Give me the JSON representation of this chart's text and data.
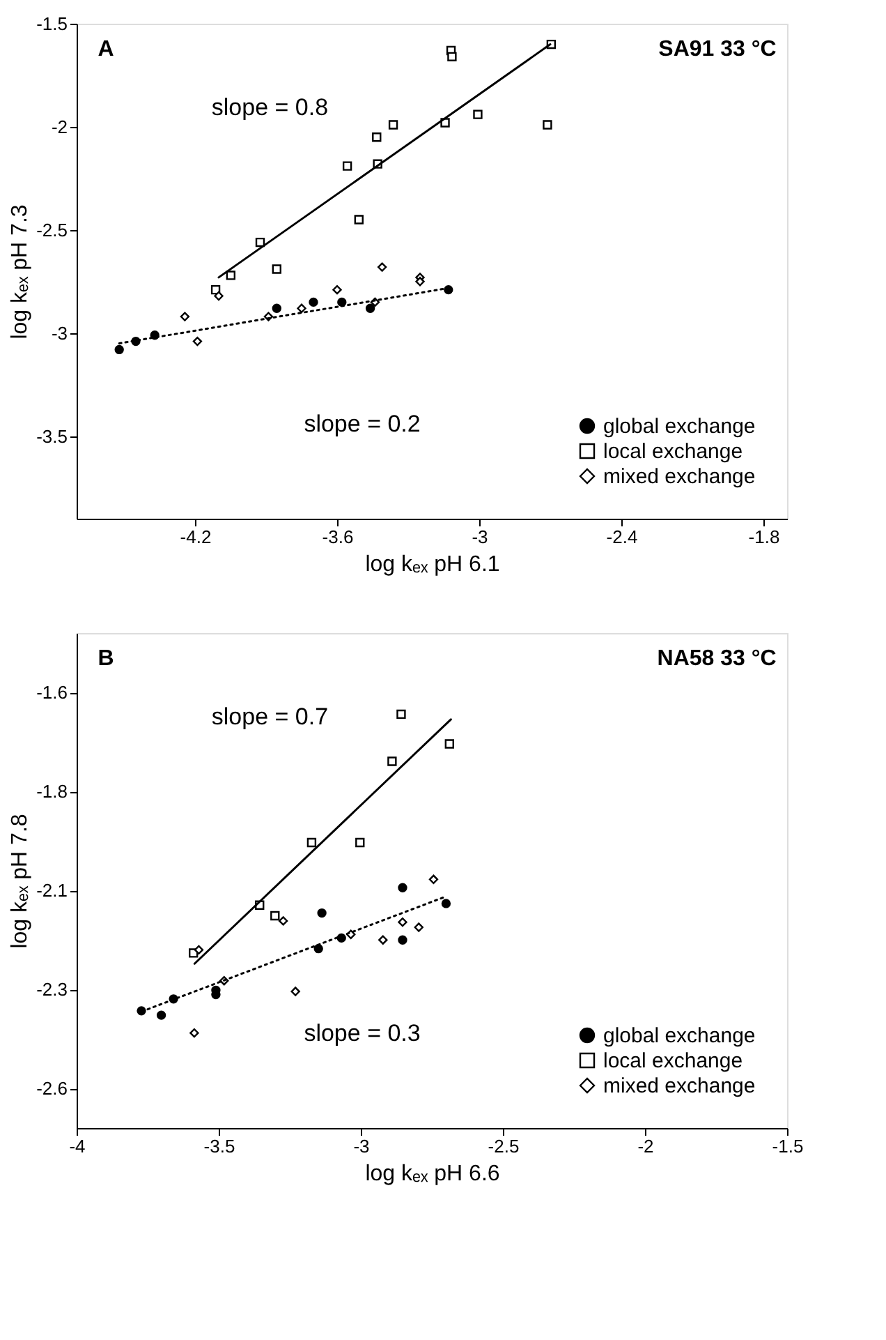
{
  "chart_data": [
    {
      "type": "scatter",
      "xlabel": "log kₑₓ pH 6.1",
      "ylabel": "log kₑₓ pH 7.3",
      "xlim": [
        -4.7,
        -1.7
      ],
      "ylim": [
        -3.9,
        -1.5
      ],
      "xticks": [
        -4.2,
        -3.6,
        -3,
        -2.4,
        -1.8
      ],
      "yticks": [
        -1.5,
        -2,
        -2.5,
        -3,
        -3.5
      ],
      "grid": false,
      "legend": "bottom right",
      "annotations": [
        "A",
        "SA91 33 °C",
        "slope = 0.8",
        "slope = 0.2"
      ],
      "series": [
        {
          "name": "global exchange",
          "marker": "circle",
          "color": "#000000",
          "x": [
            -4.52,
            -4.45,
            -4.37,
            -3.855,
            -3.7,
            -3.58,
            -3.46,
            -3.13
          ],
          "values": [
            -3.08,
            -3.04,
            -3.01,
            -2.88,
            -2.85,
            -2.85,
            -2.88,
            -2.79
          ]
        },
        {
          "name": "local exchange",
          "marker": "square",
          "color": "#000000",
          "x": [
            -4.113,
            -4.049,
            -3.925,
            -3.855,
            -3.557,
            -3.508,
            -3.433,
            -3.429,
            -3.363,
            -3.144,
            -3.119,
            -3.115,
            -3.006,
            -2.712,
            -2.696
          ],
          "values": [
            -2.79,
            -2.72,
            -2.56,
            -2.69,
            -2.19,
            -2.45,
            -2.05,
            -2.18,
            -1.99,
            -1.98,
            -1.63,
            -1.66,
            -1.94,
            -1.99,
            -1.6
          ]
        },
        {
          "name": "mixed exchange",
          "marker": "diamond",
          "color": "#000000",
          "x": [
            -4.243,
            -4.19,
            -4.1,
            -3.89,
            -3.75,
            -3.6,
            -3.44,
            -3.41,
            -3.25,
            -3.25
          ],
          "values": [
            -2.92,
            -3.04,
            -2.82,
            -2.92,
            -2.88,
            -2.79,
            -2.85,
            -2.68,
            -2.73,
            -2.75
          ]
        },
        {
          "type": "line",
          "line_style": "dotted",
          "color": "#000000",
          "x": [
            -4.52,
            -3.12
          ],
          "values": [
            -3.05,
            -2.78
          ]
        },
        {
          "type": "line",
          "line_style": "solid",
          "color": "#000000",
          "x": [
            -4.1,
            -2.7
          ],
          "values": [
            -2.73,
            -1.6
          ]
        }
      ]
    },
    {
      "type": "scatter",
      "xlabel": "log kₑₓ pH 6.6",
      "ylabel": "log kₑₓ pH 7.8",
      "xlim": [
        -4,
        -1.5
      ],
      "ylim": [
        -2.65,
        -1.4
      ],
      "xticks": [
        -4,
        -3.5,
        -3,
        -2.5,
        -2,
        -1.5
      ],
      "yticks": [
        {
          "value": -1.55,
          "label": "-1.6"
        },
        -1.8,
        {
          "value": -2.05,
          "label": "-2.1"
        },
        -2.3,
        {
          "value": -2.55,
          "label": "-2.6"
        }
      ],
      "grid": false,
      "legend": "bottom right",
      "annotations": [
        "B",
        "NA58 33 °C",
        "slope = 0.7",
        "slope = 0.3"
      ],
      "series": [
        {
          "name": "global exchange",
          "marker": "circle",
          "color": "#000000",
          "x": [
            -3.772,
            -3.702,
            -3.659,
            -3.51,
            -3.51,
            -3.137,
            -3.149,
            -3.068,
            -2.853,
            -2.853,
            -2.7
          ],
          "values": [
            -2.354,
            -2.365,
            -2.324,
            -2.302,
            -2.313,
            -2.107,
            -2.197,
            -2.17,
            -2.043,
            -2.175,
            -2.083
          ]
        },
        {
          "name": "local exchange",
          "marker": "square",
          "color": "#000000",
          "x": [
            -3.589,
            -3.356,
            -3.302,
            -3.173,
            -3.003,
            -2.89,
            -2.858,
            -2.688
          ],
          "values": [
            -2.208,
            -2.087,
            -2.114,
            -1.929,
            -1.929,
            -1.724,
            -1.605,
            -1.68
          ]
        },
        {
          "name": "mixed exchange",
          "marker": "diamond",
          "color": "#000000",
          "x": [
            -3.57,
            -3.586,
            -3.481,
            -3.273,
            -3.23,
            -3.035,
            -2.922,
            -2.853,
            -2.796,
            -2.744
          ],
          "values": [
            -2.2,
            -2.41,
            -2.278,
            -2.127,
            -2.305,
            -2.161,
            -2.175,
            -2.13,
            -2.143,
            -2.022
          ]
        },
        {
          "type": "line",
          "line_style": "dotted",
          "color": "#000000",
          "x": [
            -3.75,
            -2.707
          ],
          "values": [
            -2.35,
            -2.067
          ]
        },
        {
          "type": "line",
          "line_style": "solid",
          "color": "#000000",
          "x": [
            -3.585,
            -2.683
          ],
          "values": [
            -2.235,
            -1.618
          ]
        }
      ]
    }
  ]
}
